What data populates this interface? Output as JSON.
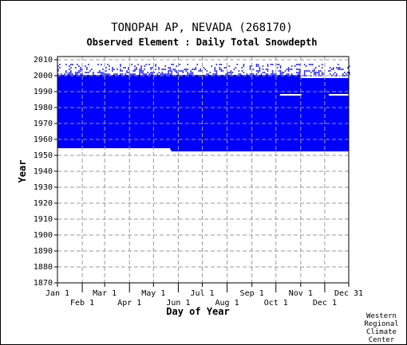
{
  "chart_data": {
    "type": "scatter",
    "title": "TONOPAH AP, NEVADA   (268170)",
    "subtitle": "Observed Element : Daily Total Snowdepth",
    "xlabel": "Day of Year",
    "ylabel": "Year",
    "x_ticks_row1": [
      "Jan 1",
      "Mar 1",
      "May 1",
      "Jul 1",
      "Sep 1",
      "Nov 1",
      "Dec 31"
    ],
    "x_ticks_row2": [
      "Feb 1",
      "Apr 1",
      "Jun 1",
      "Aug 1",
      "Oct 1",
      "Dec 1"
    ],
    "x_tick_days": [
      1,
      32,
      60,
      91,
      121,
      152,
      182,
      213,
      244,
      274,
      305,
      335,
      365
    ],
    "y_ticks": [
      "1870",
      "1880",
      "1890",
      "1900",
      "1910",
      "1920",
      "1930",
      "1940",
      "1950",
      "1960",
      "1970",
      "1980",
      "1990",
      "2000",
      "2010"
    ],
    "xlim": [
      1,
      365
    ],
    "ylim": [
      1870,
      2012
    ],
    "grid": true,
    "data_color": "#0000ff",
    "coverage": [
      {
        "year_start": 1954,
        "year_end": 1998,
        "day_start": 1,
        "day_end": 365
      },
      {
        "year_start": 1954,
        "year_end": 2000,
        "day_start": 1,
        "day_end": 305
      },
      {
        "year_start": 1953,
        "year_end": 1954,
        "day_start": 143,
        "day_end": 365
      }
    ],
    "gaps": [
      {
        "year": 1988,
        "day_start": 279,
        "day_end": 306
      },
      {
        "year": 1988,
        "day_start": 340,
        "day_end": 365
      },
      {
        "year": 1954,
        "day_start": 1,
        "day_end": 142
      }
    ],
    "sparse_years": [
      2000,
      2001,
      2002,
      2003,
      2004,
      2005,
      2006,
      2007
    ],
    "credit": [
      "Western",
      "Regional",
      "Climate",
      "Center"
    ]
  }
}
